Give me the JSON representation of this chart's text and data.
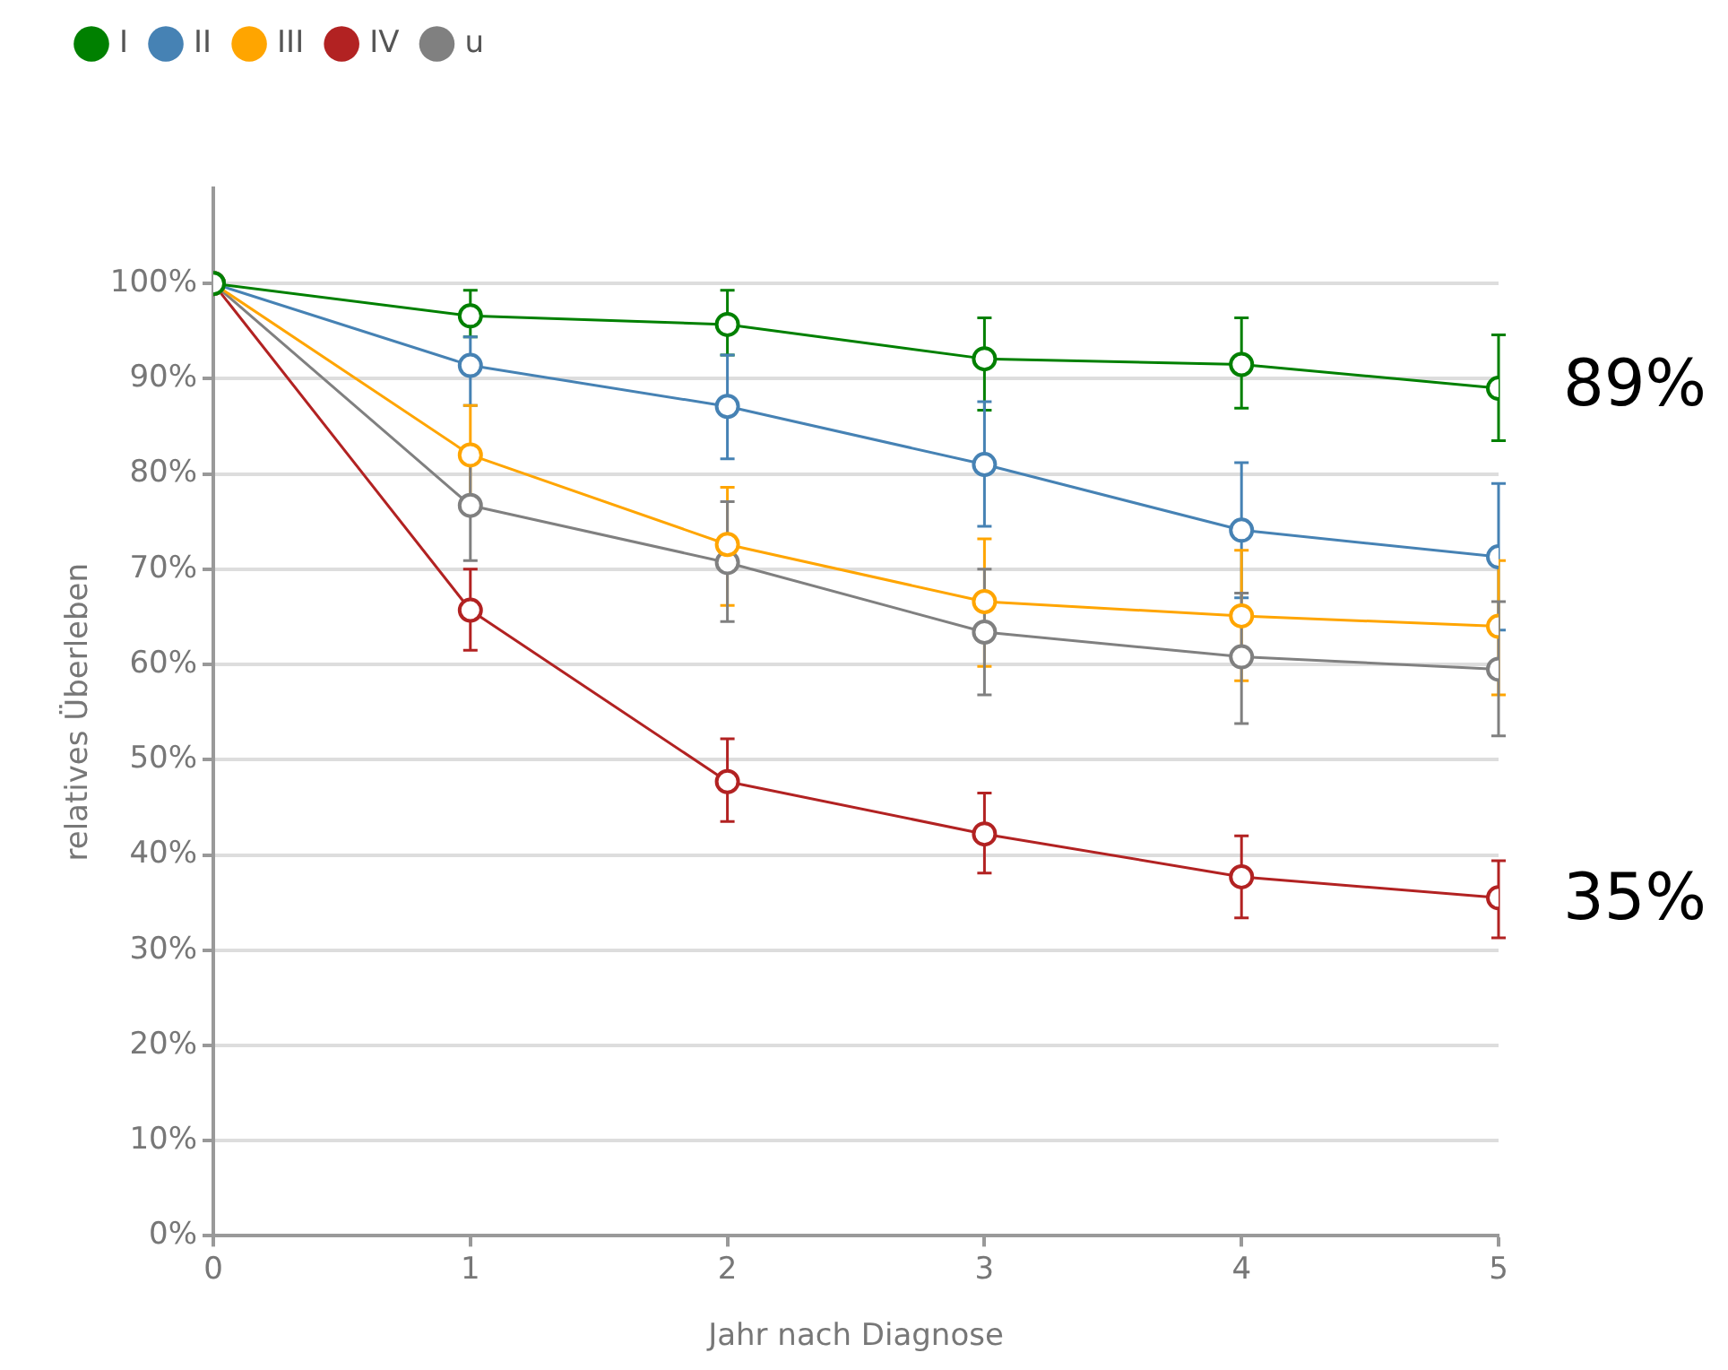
{
  "chart_data": {
    "type": "line",
    "xlabel": "Jahr nach Diagnose",
    "ylabel": "relatives Überleben",
    "x": [
      0,
      1,
      2,
      3,
      4,
      5
    ],
    "xlim": [
      0,
      5
    ],
    "xticks": [
      0,
      1,
      2,
      3,
      4,
      5
    ],
    "ylim": [
      0,
      110
    ],
    "yticks": [
      {
        "value": 0,
        "label": "0%"
      },
      {
        "value": 10,
        "label": "10%"
      },
      {
        "value": 20,
        "label": "20%"
      },
      {
        "value": 30,
        "label": "30%"
      },
      {
        "value": 40,
        "label": "40%"
      },
      {
        "value": 50,
        "label": "50%"
      },
      {
        "value": 60,
        "label": "60%"
      },
      {
        "value": 70,
        "label": "70%"
      },
      {
        "value": 80,
        "label": "80%"
      },
      {
        "value": 90,
        "label": "90%"
      },
      {
        "value": 100,
        "label": "100%"
      }
    ],
    "grid": "y",
    "legend": "top left",
    "marker": "circle",
    "line_style": "solid",
    "series": [
      {
        "name": "I",
        "color": "#008000",
        "values": [
          100,
          96.6,
          95.7,
          92.1,
          91.5,
          89.0
        ],
        "errors": [
          null,
          [
            94.4,
            99.3
          ],
          [
            92.5,
            99.3
          ],
          [
            86.7,
            96.4
          ],
          [
            86.9,
            96.4
          ],
          [
            83.5,
            94.6
          ]
        ]
      },
      {
        "name": "II",
        "color": "#4682b4",
        "values": [
          100,
          91.4,
          87.1,
          81.0,
          74.1,
          71.3
        ],
        "errors": [
          null,
          [
            87.2,
            94.4
          ],
          [
            81.6,
            92.5
          ],
          [
            74.5,
            87.6
          ],
          [
            67.0,
            81.2
          ],
          [
            63.6,
            79.0
          ]
        ]
      },
      {
        "name": "III",
        "color": "#ffa500",
        "values": [
          100,
          82.0,
          72.6,
          66.6,
          65.1,
          64.0
        ],
        "errors": [
          null,
          [
            76.8,
            87.2
          ],
          [
            66.2,
            78.6
          ],
          [
            59.8,
            73.2
          ],
          [
            58.3,
            72.0
          ],
          [
            56.8,
            70.9
          ]
        ]
      },
      {
        "name": "IV",
        "color": "#b22222",
        "values": [
          100,
          65.7,
          47.7,
          42.2,
          37.7,
          35.5
        ],
        "errors": [
          null,
          [
            61.5,
            70.0
          ],
          [
            43.5,
            52.2
          ],
          [
            38.1,
            46.5
          ],
          [
            33.4,
            42.0
          ],
          [
            31.3,
            39.4
          ]
        ]
      },
      {
        "name": "u",
        "color": "#808080",
        "values": [
          100,
          76.7,
          70.7,
          63.4,
          60.8,
          59.5
        ],
        "errors": [
          null,
          [
            70.9,
            82.4
          ],
          [
            64.5,
            77.1
          ],
          [
            56.8,
            70.0
          ],
          [
            53.8,
            67.5
          ],
          [
            52.5,
            66.6
          ]
        ]
      }
    ],
    "annotations": [
      {
        "text": "89%",
        "x": 5,
        "y": 89
      },
      {
        "text": "35%",
        "x": 5,
        "y": 35
      }
    ]
  }
}
